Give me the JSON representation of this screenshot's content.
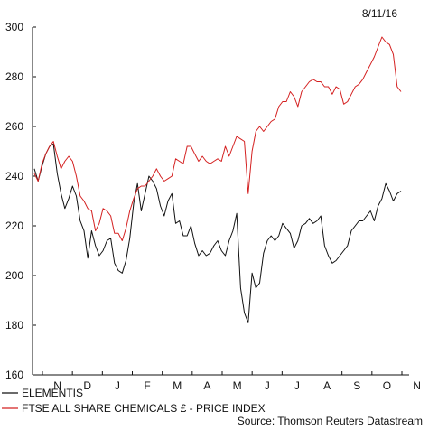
{
  "chart_data": {
    "type": "line",
    "date_label": "8/11/16",
    "source": "Source: Thomson Reuters Datastream",
    "ylim": [
      160,
      300
    ],
    "yticks": [
      160,
      180,
      200,
      220,
      240,
      260,
      280,
      300
    ],
    "months": [
      "N",
      "D",
      "J",
      "F",
      "M",
      "A",
      "M",
      "J",
      "J",
      "A",
      "S",
      "O",
      "N"
    ],
    "legend_placement": "bottom-left",
    "grid": false,
    "series": [
      {
        "name": "ELEMENTIS",
        "color": "#111111",
        "values": [
          243,
          238,
          244,
          249,
          252,
          253,
          241,
          233,
          227,
          231,
          236,
          232,
          222,
          218,
          207,
          218,
          212,
          208,
          210,
          214,
          215,
          205,
          202,
          201,
          206,
          215,
          229,
          237,
          226,
          233,
          240,
          238,
          235,
          228,
          224,
          230,
          233,
          221,
          222,
          216,
          216,
          220,
          213,
          208,
          210,
          208,
          209,
          212,
          214,
          210,
          208,
          214,
          218,
          225,
          195,
          185,
          181,
          201,
          195,
          197,
          209,
          214,
          216,
          214,
          216,
          221,
          219,
          217,
          211,
          214,
          220,
          221,
          223,
          221,
          222,
          224,
          212,
          208,
          205,
          206,
          208,
          210,
          212,
          218,
          220,
          222,
          222,
          224,
          226,
          222,
          228,
          231,
          237,
          234,
          230,
          233,
          234
        ]
      },
      {
        "name": "FTSE ALL SHARE CHEMICALS £ - PRICE INDEX",
        "color": "#d42020",
        "values": [
          241,
          238,
          245,
          249,
          252,
          254,
          248,
          243,
          246,
          248,
          246,
          240,
          232,
          230,
          227,
          226,
          218,
          221,
          227,
          226,
          224,
          217,
          217,
          214,
          219,
          226,
          231,
          235,
          236,
          236,
          238,
          240,
          243,
          240,
          238,
          239,
          240,
          247,
          246,
          245,
          252,
          252,
          249,
          246,
          248,
          246,
          245,
          246,
          247,
          246,
          252,
          248,
          252,
          256,
          255,
          254,
          233,
          250,
          258,
          260,
          258,
          260,
          262,
          263,
          268,
          270,
          270,
          274,
          272,
          268,
          274,
          276,
          278,
          279,
          278,
          278,
          276,
          276,
          273,
          276,
          275,
          269,
          270,
          273,
          276,
          277,
          279,
          282,
          285,
          288,
          292,
          296,
          294,
          293,
          289,
          276,
          274
        ]
      }
    ]
  }
}
